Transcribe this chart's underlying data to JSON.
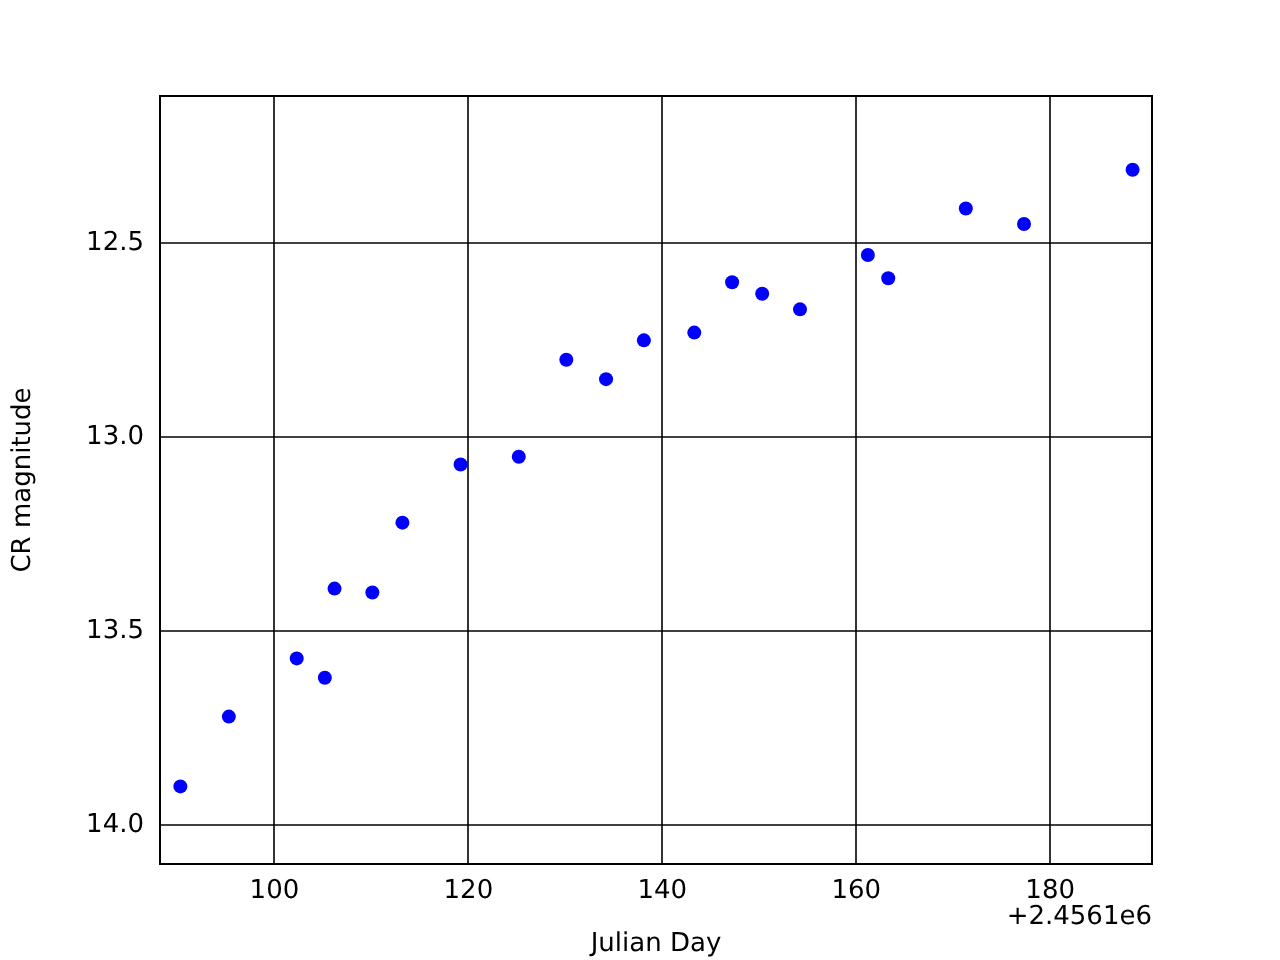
{
  "chart_data": {
    "type": "scatter",
    "xlabel": "Julian Day",
    "ylabel": "CR magnitude",
    "annotations": [
      "+2.4561e6"
    ],
    "x": [
      90.3,
      95.3,
      102.3,
      105.2,
      106.2,
      110.1,
      113.2,
      119.2,
      125.2,
      130.1,
      134.2,
      138.1,
      143.3,
      147.2,
      150.3,
      154.2,
      161.2,
      163.3,
      171.3,
      177.3,
      188.5
    ],
    "series": [
      {
        "color": "#0000ff",
        "values": [
          13.9,
          13.72,
          13.57,
          13.62,
          13.39,
          13.4,
          13.22,
          13.07,
          13.05,
          12.8,
          12.85,
          12.75,
          12.73,
          12.6,
          12.63,
          12.67,
          12.53,
          12.59,
          12.41,
          12.45,
          12.31
        ]
      }
    ],
    "xlim": [
      88.2,
      190.5
    ],
    "xticks": [
      100,
      120,
      140,
      160,
      180
    ],
    "ylim": [
      14.1,
      12.12
    ],
    "yticks": [
      12.5,
      {
        "value": 13,
        "label": "13.0"
      },
      13.5,
      {
        "value": 14,
        "label": "14.0"
      }
    ],
    "grid": true,
    "marker": "circle"
  }
}
